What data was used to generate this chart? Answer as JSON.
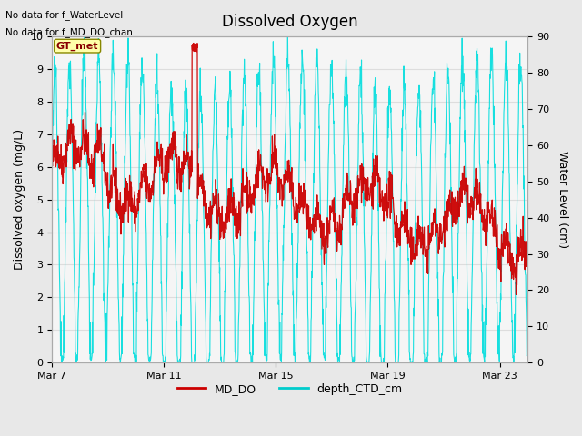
{
  "title": "Dissolved Oxygen",
  "ylabel_left": "Dissolved oxygen (mg/L)",
  "ylabel_right": "Water Level (cm)",
  "ylim_left": [
    0.0,
    10.0
  ],
  "ylim_right": [
    0,
    90
  ],
  "yticks_left": [
    0.0,
    1.0,
    2.0,
    3.0,
    4.0,
    5.0,
    6.0,
    7.0,
    8.0,
    9.0,
    10.0
  ],
  "yticks_right": [
    0,
    10,
    20,
    30,
    40,
    50,
    60,
    70,
    80,
    90
  ],
  "xtick_labels": [
    "Mar 7",
    "Mar 11",
    "Mar 15",
    "Mar 19",
    "Mar 23"
  ],
  "note1": "No data for f_WaterLevel",
  "note2": "No data for f_MD_DO_chan",
  "legend_label1": "MD_DO",
  "legend_label2": "depth_CTD_cm",
  "legend_color1": "#cc0000",
  "legend_color2": "#00cccc",
  "color_DO": "#cc0000",
  "color_CTD": "#00dddd",
  "color_grid": "#dddddd",
  "color_bg_outer": "#e8e8e8",
  "color_bg_inner": "#f5f5f5",
  "gt_met_label": "GT_met",
  "gt_met_bg": "#ffffaa",
  "gt_met_border": "#888800"
}
